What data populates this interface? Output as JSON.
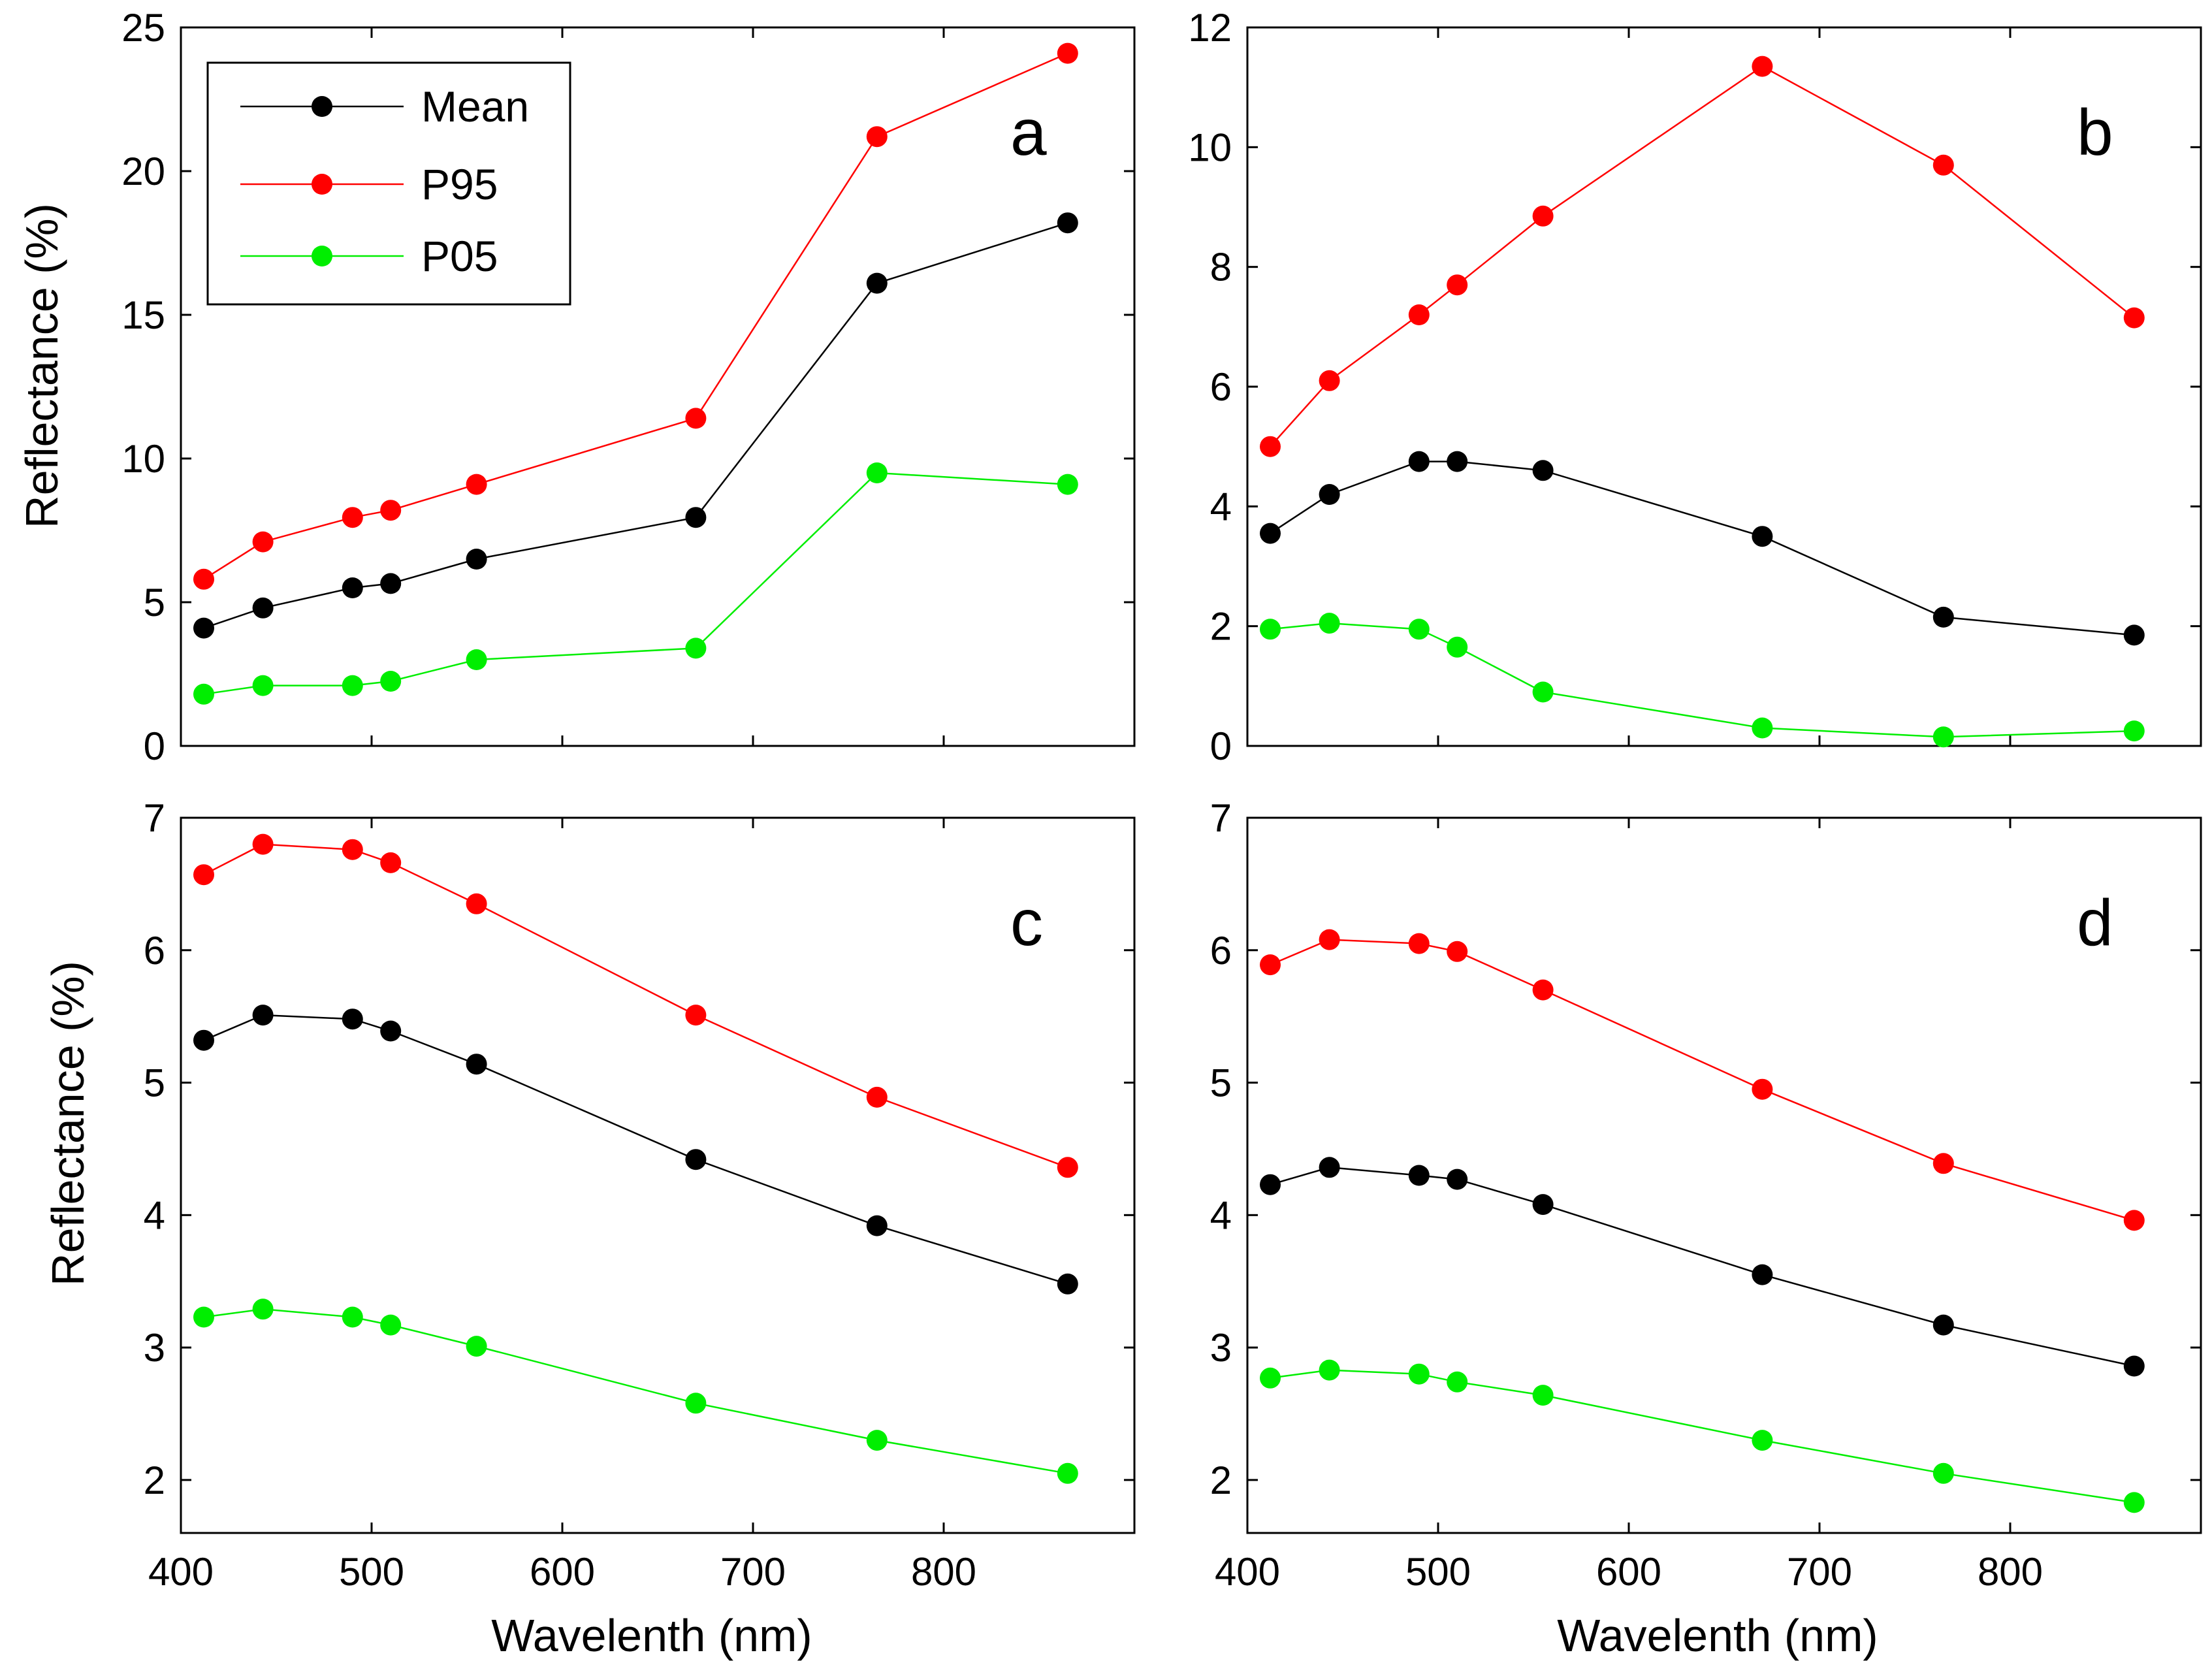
{
  "figure": {
    "x_axis_title": "Wavelenth (nm)",
    "y_axis_title": "Reflectance (%)"
  },
  "legend": {
    "entries": [
      {
        "label": "Mean",
        "color": "#000000"
      },
      {
        "label": "P95",
        "color": "#ff0000"
      },
      {
        "label": "P05",
        "color": "#00ee00"
      }
    ]
  },
  "chart_data": [
    {
      "type": "line",
      "panel": "a",
      "title": "a",
      "xlabel": "",
      "ylabel": "Reflectance (%)",
      "xlim": [
        400,
        900
      ],
      "ylim": [
        0,
        25
      ],
      "xticks": [
        400,
        500,
        600,
        700,
        800
      ],
      "yticks": [
        0,
        5,
        10,
        15,
        20,
        25
      ],
      "grid": false,
      "x": [
        412,
        443,
        490,
        510,
        555,
        670,
        765,
        865
      ],
      "series": [
        {
          "name": "Mean",
          "color": "#000000",
          "values": [
            4.1,
            4.8,
            5.5,
            5.65,
            6.5,
            7.95,
            16.1,
            18.2
          ]
        },
        {
          "name": "P95",
          "color": "#ff0000",
          "values": [
            5.8,
            7.1,
            7.95,
            8.2,
            9.1,
            11.4,
            21.2,
            24.1
          ]
        },
        {
          "name": "P05",
          "color": "#00ee00",
          "values": [
            1.8,
            2.1,
            2.1,
            2.25,
            3.0,
            3.4,
            9.5,
            9.1
          ]
        }
      ]
    },
    {
      "type": "line",
      "panel": "b",
      "title": "b",
      "xlabel": "",
      "ylabel": "",
      "xlim": [
        400,
        900
      ],
      "ylim": [
        0,
        12
      ],
      "xticks": [
        400,
        500,
        600,
        700,
        800
      ],
      "yticks": [
        0,
        2,
        4,
        6,
        8,
        10,
        12
      ],
      "grid": false,
      "x": [
        412,
        443,
        490,
        510,
        555,
        670,
        765,
        865
      ],
      "series": [
        {
          "name": "Mean",
          "color": "#000000",
          "values": [
            3.55,
            4.2,
            4.75,
            4.75,
            4.6,
            3.5,
            2.15,
            1.85
          ]
        },
        {
          "name": "P95",
          "color": "#ff0000",
          "values": [
            5.0,
            6.1,
            7.2,
            7.7,
            8.85,
            11.35,
            9.7,
            7.15
          ]
        },
        {
          "name": "P05",
          "color": "#00ee00",
          "values": [
            1.95,
            2.05,
            1.95,
            1.65,
            0.9,
            0.3,
            0.15,
            0.25
          ]
        }
      ]
    },
    {
      "type": "line",
      "panel": "c",
      "title": "c",
      "xlabel": "Wavelenth (nm)",
      "ylabel": "Reflectance (%)",
      "xlim": [
        400,
        900
      ],
      "ylim": [
        1.6,
        7
      ],
      "xticks": [
        400,
        500,
        600,
        700,
        800
      ],
      "yticks": [
        2,
        3,
        4,
        5,
        6,
        7
      ],
      "grid": false,
      "x": [
        412,
        443,
        490,
        510,
        555,
        670,
        765,
        865
      ],
      "series": [
        {
          "name": "Mean",
          "color": "#000000",
          "values": [
            5.32,
            5.51,
            5.48,
            5.39,
            5.14,
            4.42,
            3.92,
            3.48
          ]
        },
        {
          "name": "P95",
          "color": "#ff0000",
          "values": [
            6.57,
            6.8,
            6.76,
            6.66,
            6.35,
            5.51,
            4.89,
            4.36
          ]
        },
        {
          "name": "P05",
          "color": "#00ee00",
          "values": [
            3.23,
            3.29,
            3.23,
            3.17,
            3.01,
            2.58,
            2.3,
            2.05
          ]
        }
      ]
    },
    {
      "type": "line",
      "panel": "d",
      "title": "d",
      "xlabel": "Wavelenth (nm)",
      "ylabel": "",
      "xlim": [
        400,
        900
      ],
      "ylim": [
        1.6,
        7
      ],
      "xticks": [
        400,
        500,
        600,
        700,
        800
      ],
      "yticks": [
        2,
        3,
        4,
        5,
        6,
        7
      ],
      "grid": false,
      "x": [
        412,
        443,
        490,
        510,
        555,
        670,
        765,
        865
      ],
      "series": [
        {
          "name": "Mean",
          "color": "#000000",
          "values": [
            4.23,
            4.36,
            4.3,
            4.27,
            4.08,
            3.55,
            3.17,
            2.86
          ]
        },
        {
          "name": "P95",
          "color": "#ff0000",
          "values": [
            5.89,
            6.08,
            6.05,
            5.99,
            5.7,
            4.95,
            4.39,
            3.96
          ]
        },
        {
          "name": "P05",
          "color": "#00ee00",
          "values": [
            2.77,
            2.83,
            2.8,
            2.74,
            2.64,
            2.3,
            2.05,
            1.83
          ]
        }
      ]
    }
  ]
}
